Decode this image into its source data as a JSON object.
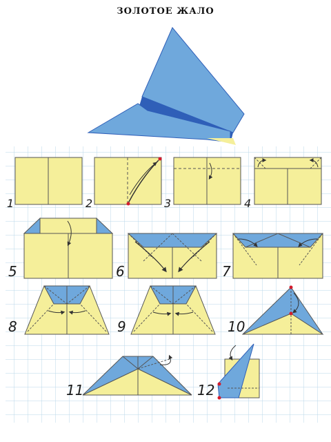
{
  "title": "ЗОЛОТОЕ ЖАЛО",
  "colors": {
    "yellow": "#f5ef9a",
    "blue": "#6fa8dc",
    "blue_dark": "#2f5fb8",
    "grid": "#b9d7ea",
    "red": "#d41c2c"
  },
  "steps": [
    {
      "label": "1"
    },
    {
      "label": "2"
    },
    {
      "label": "3"
    },
    {
      "label": "4"
    },
    {
      "label": "5"
    },
    {
      "label": "6"
    },
    {
      "label": "7"
    },
    {
      "label": "8"
    },
    {
      "label": "9"
    },
    {
      "label": "10"
    },
    {
      "label": "11"
    },
    {
      "label": "12"
    }
  ]
}
